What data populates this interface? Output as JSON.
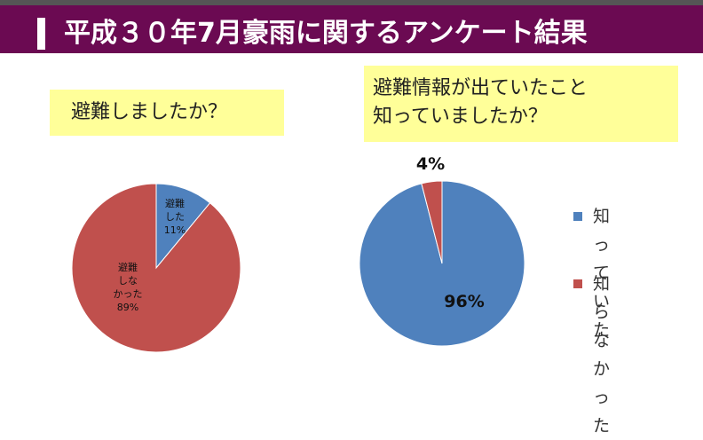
{
  "title": "平成３０年7月豪雨に関するアンケート結果",
  "colors": {
    "blue": "#4f81bd",
    "red": "#c0504d",
    "banner": "#6b0a52",
    "question_bg": "#ffff99"
  },
  "chart_data": [
    {
      "type": "pie",
      "title": "避難しましたか？",
      "slices": [
        {
          "label": "避難した",
          "label_lines": [
            "避難",
            "した"
          ],
          "value": 11,
          "value_label": "11%",
          "color": "#4f81bd"
        },
        {
          "label": "避難しなかった",
          "label_lines": [
            "避難",
            "しな",
            "かった"
          ],
          "value": 89,
          "value_label": "89%",
          "color": "#c0504d"
        }
      ]
    },
    {
      "type": "pie",
      "title": "避難情報が出ていたこと\n知っていましたか？",
      "slices": [
        {
          "label": "知っていた",
          "value": 96,
          "value_label": "96%",
          "color": "#4f81bd"
        },
        {
          "label": "知らなかった",
          "value": 4,
          "value_label": "4%",
          "color": "#c0504d"
        }
      ],
      "legend": {
        "position": "right",
        "entries": [
          {
            "text": "知っていた",
            "color": "#4f81bd"
          },
          {
            "text": "知らなかっ\nた",
            "color": "#c0504d"
          }
        ]
      }
    }
  ]
}
